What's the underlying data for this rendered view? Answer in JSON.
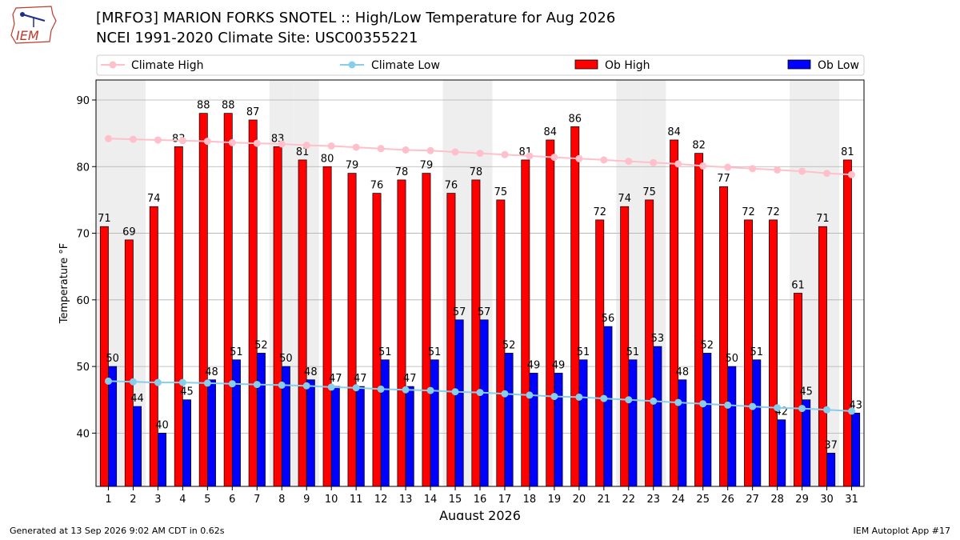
{
  "header": {
    "logo_text": "IEM",
    "title_line1": "[MRFO3] MARION FORKS SNOTEL :: High/Low Temperature for Aug 2026",
    "title_line2": "NCEI 1991-2020 Climate Site: USC00355221"
  },
  "footer": {
    "generated": "Generated at 13 Sep 2026 9:02 AM CDT in 0.62s",
    "app": "IEM Autoplot App #17"
  },
  "colors": {
    "ob_high": "#ff0000",
    "ob_low": "#0000ff",
    "climate_high": "#ffc0cb",
    "climate_low": "#87ceeb",
    "weekend_shade": "#eeeeee"
  },
  "chart_data": {
    "type": "bar",
    "xlabel": "August 2026",
    "ylabel": "Temperature °F",
    "ylim": [
      32,
      93
    ],
    "yticks": [
      40,
      50,
      60,
      70,
      80,
      90
    ],
    "grid": true,
    "legend_position": "top",
    "shaded_weekend_days": [
      1,
      2,
      8,
      9,
      15,
      16,
      22,
      23,
      29,
      30
    ],
    "categories": [
      "1",
      "2",
      "3",
      "4",
      "5",
      "6",
      "7",
      "8",
      "9",
      "10",
      "11",
      "12",
      "13",
      "14",
      "15",
      "16",
      "17",
      "18",
      "19",
      "20",
      "21",
      "22",
      "23",
      "24",
      "25",
      "26",
      "27",
      "28",
      "29",
      "30",
      "31"
    ],
    "series": [
      {
        "name": "Climate High",
        "kind": "line",
        "values": [
          84.2,
          84.1,
          84.0,
          83.9,
          83.8,
          83.6,
          83.5,
          83.4,
          83.2,
          83.1,
          82.9,
          82.7,
          82.5,
          82.4,
          82.2,
          82.0,
          81.8,
          81.6,
          81.4,
          81.2,
          81.0,
          80.8,
          80.6,
          80.4,
          80.1,
          79.9,
          79.7,
          79.5,
          79.3,
          79.0,
          78.8
        ]
      },
      {
        "name": "Climate Low",
        "kind": "line",
        "values": [
          47.8,
          47.7,
          47.6,
          47.6,
          47.5,
          47.4,
          47.3,
          47.2,
          47.1,
          46.9,
          46.8,
          46.6,
          46.5,
          46.4,
          46.2,
          46.1,
          45.9,
          45.7,
          45.5,
          45.4,
          45.2,
          45.0,
          44.8,
          44.6,
          44.4,
          44.2,
          44.0,
          43.8,
          43.7,
          43.5,
          43.3
        ]
      },
      {
        "name": "Ob High",
        "kind": "bar",
        "values": [
          71,
          69,
          74,
          83,
          88,
          88,
          87,
          83,
          81,
          80,
          79,
          76,
          78,
          79,
          76,
          78,
          75,
          81,
          84,
          86,
          72,
          74,
          75,
          84,
          82,
          77,
          72,
          72,
          61,
          71,
          81
        ]
      },
      {
        "name": "Ob Low",
        "kind": "bar",
        "values": [
          50,
          44,
          40,
          45,
          48,
          51,
          52,
          50,
          48,
          47,
          47,
          51,
          47,
          51,
          57,
          57,
          52,
          49,
          49,
          51,
          56,
          51,
          53,
          48,
          52,
          50,
          51,
          42,
          45,
          37,
          43
        ]
      }
    ]
  }
}
